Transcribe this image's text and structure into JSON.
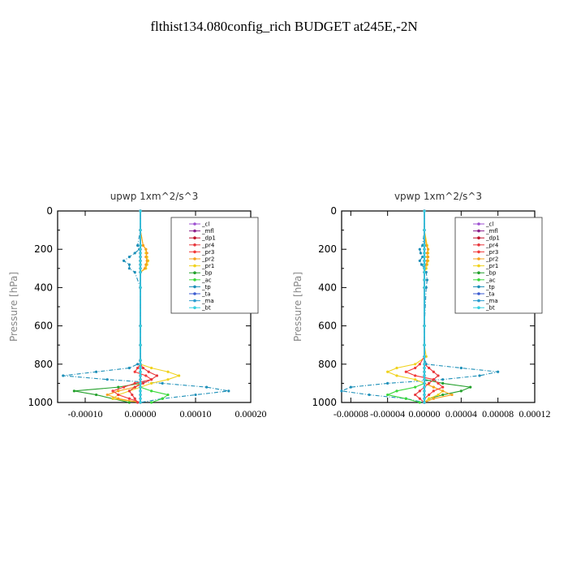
{
  "page_title": "flthist134.080config_rich  BUDGET at245E,-2N",
  "legend_entries": [
    {
      "label": "_cl",
      "color": "#9d4fd0"
    },
    {
      "label": "_mfl",
      "color": "#8b1f8b"
    },
    {
      "label": "_dp1",
      "color": "#c0102a"
    },
    {
      "label": "_pr4",
      "color": "#e8363b"
    },
    {
      "label": "_pr3",
      "color": "#f23a3a"
    },
    {
      "label": "_pr2",
      "color": "#f6a21c"
    },
    {
      "label": "_pr1",
      "color": "#f0d21c"
    },
    {
      "label": "_bp",
      "color": "#23a02b"
    },
    {
      "label": "_ac",
      "color": "#3ad83a"
    },
    {
      "label": "_tp",
      "color": "#1c8fb8"
    },
    {
      "label": "_ta",
      "color": "#3b5bd0"
    },
    {
      "label": "_ma",
      "color": "#2a9ccf"
    },
    {
      "label": "_bt",
      "color": "#35d0e0"
    }
  ],
  "chart_data": [
    {
      "type": "line",
      "title": "upwp   1xm^2/s^3",
      "xlabel": "",
      "ylabel": "Pressure [hPa]",
      "xlim": [
        -0.00015,
        0.0002
      ],
      "ylim": [
        1000,
        0
      ],
      "xticks": [
        "-0.00010",
        "0.00000",
        "0.00010",
        "0.00020"
      ],
      "xtick_values": [
        -0.0001,
        0.0,
        0.0001,
        0.0002
      ],
      "yticks": [
        "0",
        "200",
        "400",
        "600",
        "800",
        "1000"
      ],
      "ytick_values": [
        0,
        200,
        400,
        600,
        800,
        1000
      ],
      "pressure": [
        0,
        100,
        180,
        200,
        220,
        240,
        260,
        280,
        300,
        320,
        400,
        600,
        700,
        780,
        800,
        820,
        840,
        860,
        880,
        900,
        920,
        940,
        960,
        980,
        1000
      ],
      "series": [
        {
          "name": "_cl",
          "values": [
            0,
            0,
            0,
            0,
            0,
            0,
            0,
            0,
            0,
            0,
            0,
            0,
            0,
            0,
            0,
            0,
            0,
            0,
            0,
            0,
            0,
            0,
            0,
            0,
            0
          ]
        },
        {
          "name": "_mfl",
          "values": [
            0,
            0,
            0,
            0,
            0,
            0,
            0,
            0,
            0,
            0,
            0,
            0,
            0,
            0,
            0,
            0,
            0,
            0,
            0,
            0,
            0,
            0,
            0,
            0,
            0
          ]
        },
        {
          "name": "_dp1",
          "values": [
            0,
            0,
            0,
            0,
            0,
            0,
            0,
            0,
            0,
            0,
            0,
            0,
            0,
            0,
            0,
            0,
            0,
            0,
            0,
            0,
            0,
            0,
            0,
            0,
            0
          ]
        },
        {
          "name": "_pr4",
          "values": [
            0,
            0,
            0,
            0,
            0,
            0,
            0,
            0,
            0,
            0,
            0,
            0,
            0,
            0,
            0,
            5e-06,
            1.5e-05,
            3e-05,
            2e-05,
            5e-06,
            -1e-05,
            -2e-05,
            -1.5e-05,
            -1e-05,
            -5e-06
          ]
        },
        {
          "name": "_pr3",
          "values": [
            0,
            0,
            0,
            0,
            0,
            0,
            0,
            0,
            0,
            0,
            0,
            0,
            0,
            0,
            0,
            -5e-06,
            -1e-05,
            1e-05,
            2e-05,
            -1e-05,
            -3e-05,
            -5e-05,
            -4e-05,
            -2e-05,
            0
          ]
        },
        {
          "name": "_pr2",
          "values": [
            0,
            0,
            5e-06,
            1e-05,
            1.2e-05,
            1e-05,
            1.2e-05,
            1e-05,
            8e-06,
            0,
            0,
            0,
            0,
            0,
            0,
            0,
            0,
            0,
            0,
            0,
            -1e-05,
            -4e-05,
            -6e-05,
            -4e-05,
            0
          ]
        },
        {
          "name": "_pr1",
          "values": [
            0,
            0,
            5e-06,
            1e-05,
            1e-05,
            1.2e-05,
            1.4e-05,
            1.2e-05,
            1e-05,
            0,
            0,
            0,
            0,
            0,
            0,
            2e-05,
            5e-05,
            7e-05,
            5e-05,
            2e-05,
            0,
            -2e-05,
            -4e-05,
            -5e-05,
            0
          ]
        },
        {
          "name": "_bp",
          "values": [
            0,
            0,
            0,
            0,
            0,
            0,
            0,
            0,
            0,
            0,
            0,
            0,
            0,
            0,
            0,
            0,
            0,
            0,
            0,
            0,
            -4e-05,
            -0.00012,
            -8e-05,
            -5e-05,
            -2e-05
          ]
        },
        {
          "name": "_ac",
          "values": [
            0,
            0,
            0,
            0,
            0,
            0,
            0,
            0,
            0,
            0,
            0,
            0,
            0,
            0,
            0,
            0,
            0,
            0,
            0,
            0,
            0,
            2e-05,
            5e-05,
            4e-05,
            2e-05
          ]
        },
        {
          "name": "_tp",
          "values": [
            0,
            0,
            -5e-06,
            -2e-06,
            -1e-05,
            -2e-05,
            -3e-05,
            -2e-05,
            -2e-05,
            -1e-05,
            0,
            0,
            0,
            0,
            -5e-06,
            -2e-05,
            -8e-05,
            -0.00014,
            -6e-05,
            4e-05,
            0.00012,
            0.00016,
            0.0001,
            4e-05,
            0
          ]
        },
        {
          "name": "_ta",
          "values": [
            0,
            0,
            0,
            0,
            0,
            0,
            0,
            0,
            0,
            0,
            0,
            0,
            0,
            0,
            0,
            0,
            0,
            0,
            0,
            0,
            0,
            0,
            0,
            0,
            0
          ]
        },
        {
          "name": "_ma",
          "values": [
            0,
            0,
            0,
            0,
            0,
            0,
            0,
            0,
            0,
            0,
            0,
            0,
            0,
            0,
            0,
            0,
            0,
            0,
            0,
            0,
            0,
            0,
            0,
            0,
            0
          ]
        },
        {
          "name": "_bt",
          "values": [
            0,
            0,
            0,
            0,
            0,
            0,
            0,
            0,
            0,
            0,
            0,
            0,
            0,
            0,
            0,
            0,
            0,
            0,
            0,
            0,
            0,
            0,
            0,
            0,
            0
          ]
        }
      ]
    },
    {
      "type": "line",
      "title": "vpwp   1xm^2/s^3",
      "xlabel": "",
      "ylabel": "Pressure [hPa]",
      "xlim": [
        -9e-05,
        0.00012
      ],
      "ylim": [
        1000,
        0
      ],
      "xticks": [
        "-0.00008",
        "-0.00004",
        "0.00000",
        "0.00004",
        "0.00008",
        "0.00012"
      ],
      "xtick_values": [
        -8e-05,
        -4e-05,
        0.0,
        4e-05,
        8e-05,
        0.00012
      ],
      "yticks": [
        "0",
        "200",
        "400",
        "600",
        "800",
        "1000"
      ],
      "ytick_values": [
        0,
        200,
        400,
        600,
        800,
        1000
      ],
      "pressure": [
        0,
        100,
        180,
        200,
        220,
        240,
        260,
        280,
        300,
        320,
        360,
        400,
        600,
        700,
        760,
        800,
        820,
        840,
        860,
        880,
        900,
        920,
        940,
        960,
        980,
        1000
      ],
      "series": [
        {
          "name": "_cl",
          "values": [
            0,
            0,
            0,
            0,
            0,
            0,
            0,
            0,
            0,
            0,
            0,
            0,
            0,
            0,
            0,
            0,
            0,
            0,
            0,
            0,
            0,
            0,
            0,
            0,
            0,
            0
          ]
        },
        {
          "name": "_mfl",
          "values": [
            0,
            0,
            0,
            0,
            0,
            0,
            0,
            0,
            0,
            0,
            0,
            0,
            0,
            0,
            0,
            0,
            0,
            0,
            0,
            0,
            0,
            0,
            0,
            0,
            0,
            0
          ]
        },
        {
          "name": "_dp1",
          "values": [
            0,
            0,
            0,
            0,
            0,
            0,
            0,
            0,
            0,
            0,
            0,
            0,
            0,
            0,
            0,
            0,
            0,
            0,
            0,
            0,
            0,
            0,
            0,
            0,
            0,
            0
          ]
        },
        {
          "name": "_pr4",
          "values": [
            0,
            0,
            0,
            0,
            0,
            0,
            0,
            0,
            0,
            0,
            0,
            0,
            0,
            0,
            0,
            0,
            5e-06,
            1e-05,
            1.5e-05,
            1e-05,
            5e-06,
            0,
            -5e-06,
            -1e-05,
            -5e-06,
            0
          ]
        },
        {
          "name": "_pr3",
          "values": [
            0,
            0,
            0,
            0,
            0,
            0,
            0,
            0,
            0,
            0,
            0,
            0,
            0,
            0,
            0,
            -5e-06,
            -1e-05,
            -2e-05,
            -1e-05,
            1e-05,
            1.5e-05,
            2e-05,
            1e-05,
            5e-06,
            0,
            0
          ]
        },
        {
          "name": "_pr2",
          "values": [
            0,
            0,
            2e-06,
            4e-06,
            3e-06,
            4e-06,
            3e-06,
            2e-06,
            0,
            0,
            0,
            0,
            0,
            0,
            0,
            0,
            0,
            0,
            0,
            0,
            0,
            1e-05,
            2e-05,
            3e-05,
            1e-05,
            0
          ]
        },
        {
          "name": "_pr1",
          "values": [
            0,
            0,
            3e-06,
            4e-06,
            4e-06,
            3e-06,
            4e-06,
            3e-06,
            2e-06,
            0,
            0,
            0,
            0,
            0,
            2e-06,
            -1e-05,
            -3e-05,
            -4e-05,
            -3e-05,
            -1e-05,
            0,
            1e-05,
            2e-05,
            1.5e-05,
            5e-06,
            0
          ]
        },
        {
          "name": "_bp",
          "values": [
            0,
            0,
            0,
            0,
            0,
            0,
            0,
            0,
            0,
            0,
            0,
            0,
            0,
            0,
            0,
            0,
            0,
            0,
            0,
            0,
            2e-05,
            5e-05,
            4e-05,
            2e-05,
            5e-06,
            0
          ]
        },
        {
          "name": "_ac",
          "values": [
            0,
            0,
            0,
            0,
            0,
            0,
            0,
            0,
            0,
            0,
            0,
            0,
            0,
            0,
            0,
            0,
            0,
            0,
            0,
            0,
            0,
            -1e-05,
            -3e-05,
            -4e-05,
            -2e-05,
            -5e-06
          ]
        },
        {
          "name": "_tp",
          "values": [
            0,
            0,
            -2e-06,
            -5e-06,
            -4e-06,
            -2e-06,
            -5e-06,
            -3e-06,
            0,
            2e-06,
            3e-06,
            2e-06,
            0,
            0,
            0,
            2e-06,
            4e-05,
            8e-05,
            6e-05,
            2e-05,
            -4e-05,
            -8e-05,
            -9e-05,
            -6e-05,
            -2e-05,
            0
          ]
        },
        {
          "name": "_ta",
          "values": [
            0,
            0,
            0,
            0,
            0,
            0,
            0,
            0,
            0,
            0,
            0,
            0,
            0,
            0,
            0,
            0,
            0,
            0,
            0,
            0,
            0,
            0,
            0,
            0,
            0,
            0
          ]
        },
        {
          "name": "_ma",
          "values": [
            0,
            0,
            0,
            0,
            0,
            0,
            0,
            0,
            0,
            0,
            0,
            0,
            0,
            0,
            0,
            0,
            0,
            0,
            0,
            0,
            0,
            0,
            0,
            0,
            0,
            0
          ]
        },
        {
          "name": "_bt",
          "values": [
            0,
            0,
            0,
            0,
            0,
            0,
            0,
            0,
            0,
            0,
            0,
            0,
            0,
            0,
            0,
            0,
            0,
            0,
            0,
            0,
            0,
            0,
            0,
            0,
            0,
            0
          ]
        }
      ]
    }
  ]
}
